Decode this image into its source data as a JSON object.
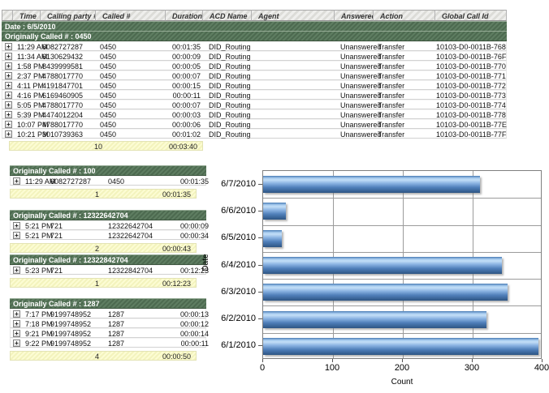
{
  "report": {
    "columns": [
      "",
      "Time",
      "Calling party #",
      "Called #",
      "Duration",
      "ACD Name",
      "Agent",
      "Answered",
      "Action",
      "Global Call Id"
    ],
    "date_header": "Date : 6/5/2010",
    "expand_icon": "+",
    "sections": [
      {
        "header": "Originally Called # : 0450",
        "full_width": true,
        "rows": [
          {
            "time": "11:29 AM",
            "calling": "6082727287",
            "called": "0450",
            "duration": "00:01:35",
            "acd": "DID_Routing",
            "agent": "",
            "answered": "Unanswered",
            "action": "Transfer",
            "global_id": "10103-D0-0011B-768"
          },
          {
            "time": "11:34 AM",
            "calling": "6130629432",
            "called": "0450",
            "duration": "00:00:09",
            "acd": "DID_Routing",
            "agent": "",
            "answered": "Unanswered",
            "action": "Transfer",
            "global_id": "10103-D0-0011B-76F"
          },
          {
            "time": "1:58 PM",
            "calling": "8439999581",
            "called": "0450",
            "duration": "00:00:05",
            "acd": "DID_Routing",
            "agent": "",
            "answered": "Unanswered",
            "action": "Transfer",
            "global_id": "10103-D0-0011B-770"
          },
          {
            "time": "2:37 PM",
            "calling": "4788017770",
            "called": "0450",
            "duration": "00:00:07",
            "acd": "DID_Routing",
            "agent": "",
            "answered": "Unanswered",
            "action": "Transfer",
            "global_id": "10103-D0-0011B-771"
          },
          {
            "time": "4:11 PM",
            "calling": "4191847701",
            "called": "0450",
            "duration": "00:00:15",
            "acd": "DID_Routing",
            "agent": "",
            "answered": "Unanswered",
            "action": "Transfer",
            "global_id": "10103-D0-0011B-772"
          },
          {
            "time": "4:16 PM",
            "calling": "6169460905",
            "called": "0450",
            "duration": "00:00:11",
            "acd": "DID_Routing",
            "agent": "",
            "answered": "Unanswered",
            "action": "Transfer",
            "global_id": "10103-D0-0011B-773"
          },
          {
            "time": "5:05 PM",
            "calling": "4788017770",
            "called": "0450",
            "duration": "00:00:07",
            "acd": "DID_Routing",
            "agent": "",
            "answered": "Unanswered",
            "action": "Transfer",
            "global_id": "10103-D0-0011B-774"
          },
          {
            "time": "5:39 PM",
            "calling": "4474012204",
            "called": "0450",
            "duration": "00:00:03",
            "acd": "DID_Routing",
            "agent": "",
            "answered": "Unanswered",
            "action": "Transfer",
            "global_id": "10103-D0-0011B-778"
          },
          {
            "time": "10:07 PM",
            "calling": "4788017770",
            "called": "0450",
            "duration": "00:00:06",
            "acd": "DID_Routing",
            "agent": "",
            "answered": "Unanswered",
            "action": "Transfer",
            "global_id": "10103-D0-0011B-77E"
          },
          {
            "time": "10:21 PM",
            "calling": "3010739363",
            "called": "0450",
            "duration": "00:01:02",
            "acd": "DID_Routing",
            "agent": "",
            "answered": "Unanswered",
            "action": "Transfer",
            "global_id": "10103-D0-0011B-77F"
          }
        ],
        "summary": {
          "count": "10",
          "total_duration": "00:03:40"
        }
      },
      {
        "header": "Originally Called # : 100",
        "full_width": false,
        "rows": [
          {
            "time": "11:29 AM",
            "calling": "6082727287",
            "called": "0450",
            "duration": "00:01:35"
          }
        ],
        "summary": {
          "count": "1",
          "total_duration": "00:01:35"
        }
      },
      {
        "header": "Originally Called # : 12322642704",
        "full_width": false,
        "rows": [
          {
            "time": "5:21 PM",
            "calling": "721",
            "called": "12322642704",
            "duration": "00:00:09"
          },
          {
            "time": "5:21 PM",
            "calling": "721",
            "called": "12322642704",
            "duration": "00:00:34"
          }
        ],
        "summary": {
          "count": "2",
          "total_duration": "00:00:43"
        }
      },
      {
        "header": "Originally Called # : 12322842704",
        "full_width": false,
        "rows": [
          {
            "time": "5:23 PM",
            "calling": "721",
            "called": "12322842704",
            "duration": "00:12:23"
          }
        ],
        "summary": {
          "count": "1",
          "total_duration": "00:12:23"
        }
      },
      {
        "header": "Originally Called # : 1287",
        "full_width": false,
        "rows": [
          {
            "time": "7:17 PM",
            "calling": "9199748952",
            "called": "1287",
            "duration": "00:00:13"
          },
          {
            "time": "7:18 PM",
            "calling": "9199748952",
            "called": "1287",
            "duration": "00:00:12"
          },
          {
            "time": "9:21 PM",
            "calling": "9199748952",
            "called": "1287",
            "duration": "00:00:14"
          },
          {
            "time": "9:22 PM",
            "calling": "9199748952",
            "called": "1287",
            "duration": "00:00:11"
          }
        ],
        "summary": {
          "count": "4",
          "total_duration": "00:00:50"
        }
      }
    ]
  },
  "chart_data": {
    "type": "bar",
    "orientation": "horizontal",
    "categories": [
      "6/7/2010",
      "6/6/2010",
      "6/5/2010",
      "6/4/2010",
      "6/3/2010",
      "6/2/2010",
      "6/1/2010"
    ],
    "values": [
      310,
      33,
      27,
      342,
      350,
      320,
      394
    ],
    "xlabel": "Count",
    "ylabel": "Date",
    "xlim": [
      0,
      400
    ],
    "xticks": [
      0,
      100,
      200,
      300,
      400
    ],
    "grid": true,
    "legend": false,
    "bar_color": "#6FA0D6"
  },
  "colors": {
    "section_header_green": "#547357",
    "summary_yellow": "#F7F7C5",
    "column_header_gray": "#DCDCD8",
    "bar_blue_light": "#C3DEF7",
    "bar_blue_dark": "#2D5583",
    "gridline_gray": "#9B9B9B"
  }
}
